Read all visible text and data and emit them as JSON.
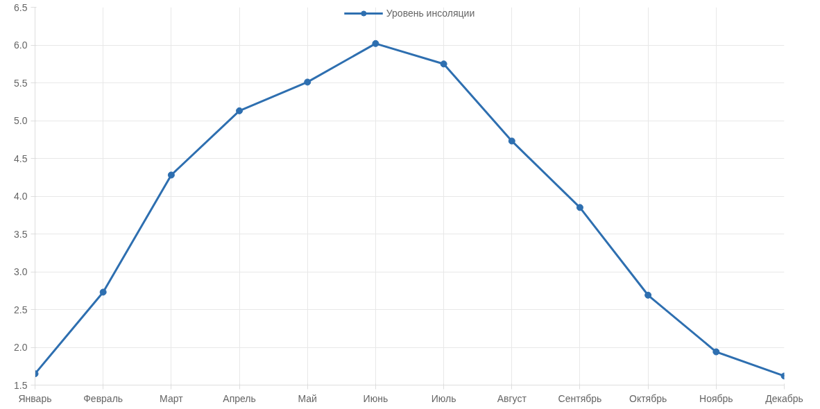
{
  "chart_data": {
    "type": "line",
    "categories": [
      "Январь",
      "Февраль",
      "Март",
      "Апрель",
      "Май",
      "Июнь",
      "Июль",
      "Август",
      "Сентябрь",
      "Октябрь",
      "Ноябрь",
      "Декабрь"
    ],
    "series": [
      {
        "name": "Уровень инсоляции",
        "color": "#2e6fb0",
        "values": [
          1.65,
          2.73,
          4.28,
          5.13,
          5.51,
          6.02,
          5.75,
          4.73,
          3.85,
          2.69,
          1.94,
          1.62
        ]
      }
    ],
    "ylim": [
      1.5,
      6.5
    ],
    "yticks": [
      {
        "value": 1.5,
        "label": "1.5"
      },
      {
        "value": 2,
        "label": "2.0"
      },
      {
        "value": 2.5,
        "label": "2.5"
      },
      {
        "value": 3,
        "label": "3.0"
      },
      {
        "value": 3.5,
        "label": "3.5"
      },
      {
        "value": 4,
        "label": "4.0"
      },
      {
        "value": 4.5,
        "label": "4.5"
      },
      {
        "value": 5,
        "label": "5.0"
      },
      {
        "value": 5.5,
        "label": "5.5"
      },
      {
        "value": 6,
        "label": "6.0"
      },
      {
        "value": 6.5,
        "label": "6.5"
      }
    ],
    "grid": true,
    "legend": "top",
    "marker": "circle",
    "line_style": "solid"
  }
}
